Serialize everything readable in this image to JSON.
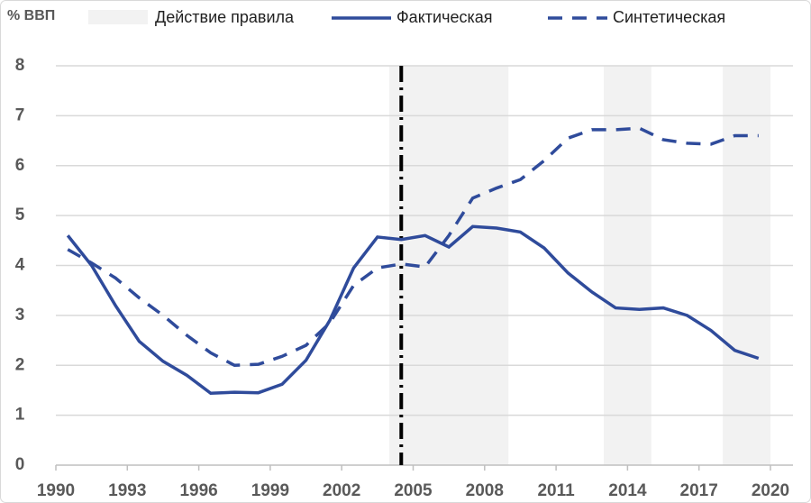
{
  "chart_data": {
    "type": "line",
    "y_label": "% ВВП",
    "x": [
      1990.5,
      1991.5,
      1992.5,
      1993.5,
      1994.5,
      1995.5,
      1996.5,
      1997.5,
      1998.5,
      1999.5,
      2000.5,
      2001.5,
      2002.5,
      2003.5,
      2004.5,
      2005.5,
      2006.5,
      2007.5,
      2008.5,
      2009.5,
      2010.5,
      2011.5,
      2012.5,
      2013.5,
      2014.5,
      2015.5,
      2016.5,
      2017.5,
      2018.5,
      2019.5
    ],
    "series": [
      {
        "name": "Фактическая",
        "color": "#2f4b9b",
        "style": "solid",
        "values": [
          4.6,
          4.0,
          3.2,
          2.48,
          2.08,
          1.8,
          1.44,
          1.46,
          1.45,
          1.62,
          2.1,
          2.9,
          3.95,
          4.57,
          4.52,
          4.6,
          4.37,
          4.78,
          4.75,
          4.67,
          4.35,
          3.85,
          3.47,
          3.15,
          3.12,
          3.15,
          3.0,
          2.7,
          2.3,
          2.14
        ]
      },
      {
        "name": "Синтетическая",
        "color": "#2f4b9b",
        "style": "dashed",
        "values": [
          4.32,
          4.05,
          3.75,
          3.35,
          3.0,
          2.6,
          2.25,
          2.0,
          2.02,
          2.18,
          2.4,
          2.85,
          3.6,
          3.95,
          4.03,
          3.97,
          4.6,
          5.35,
          5.55,
          5.72,
          6.1,
          6.55,
          6.72,
          6.72,
          6.75,
          6.52,
          6.45,
          6.43,
          6.6,
          6.6
        ]
      }
    ],
    "shade_name": "Действие правила",
    "shade_color": "#f2f2f2",
    "shaded_periods": [
      [
        2004,
        2009
      ],
      [
        2013,
        2015
      ],
      [
        2018,
        2020
      ]
    ],
    "event_x": 2004.5,
    "xlim": [
      1990,
      2020
    ],
    "xticks": [
      1990,
      1993,
      1996,
      1999,
      2002,
      2005,
      2008,
      2011,
      2014,
      2017,
      2020
    ],
    "ylim": [
      0,
      8
    ],
    "yticks": [
      0,
      1,
      2,
      3,
      4,
      5,
      6,
      7,
      8
    ],
    "grid": true
  }
}
